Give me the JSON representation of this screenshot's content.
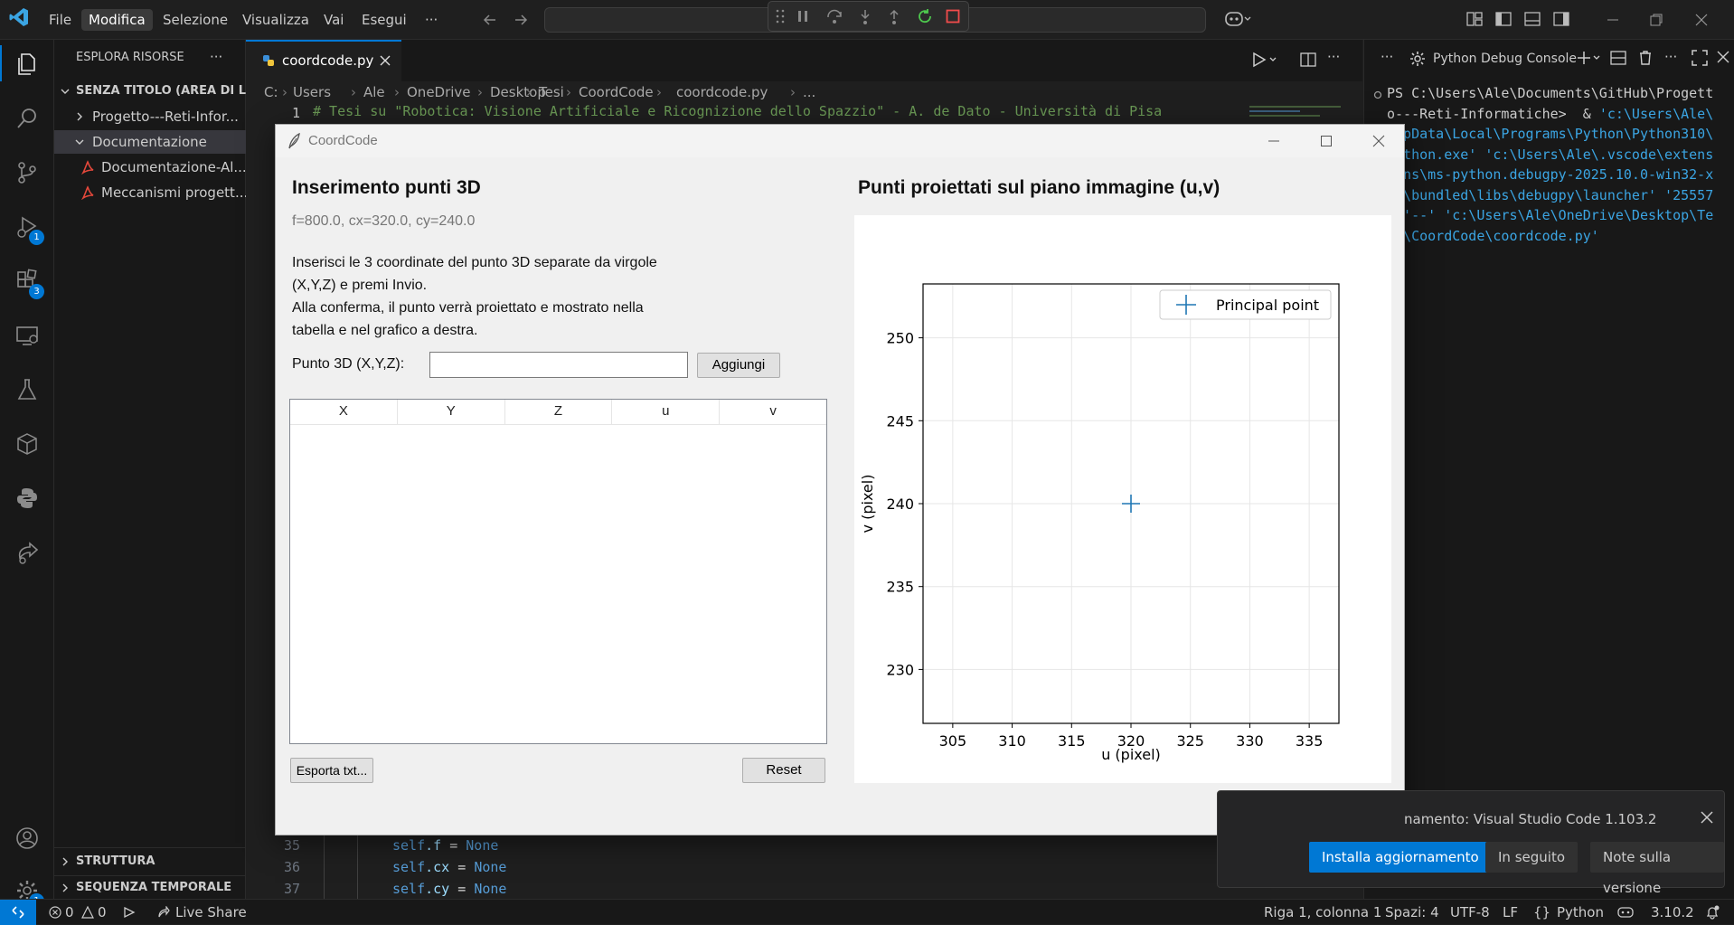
{
  "titlebar": {
    "menus": [
      "File",
      "Modifica",
      "Selezione",
      "Visualizza",
      "Vai",
      "Esegui"
    ],
    "more": "···"
  },
  "activity": {
    "run_badge": "1",
    "ext_badge": "3",
    "settings_badge": "1"
  },
  "sidebar": {
    "title": "ESPLORA RISORSE",
    "more": "···",
    "workspace": "SENZA TITOLO (AREA DI L...",
    "items": [
      {
        "label": "Progetto---Reti-Infor..."
      },
      {
        "label": "Documentazione"
      },
      {
        "label": "Documentazione-Al..."
      },
      {
        "label": "Meccanismi progett..."
      }
    ],
    "outline": "STRUTTURA",
    "timeline": "SEQUENZA TEMPORALE"
  },
  "editor": {
    "tab_label": "coordcode.py",
    "breadcrumb": [
      "C:",
      "Users",
      "Ale",
      "OneDrive",
      "Desktop",
      "Tesi",
      "CoordCode",
      "coordcode.py",
      "..."
    ],
    "line1_no": "1",
    "line1": "# Tesi su \"Robotica: Visione Artificiale e Ricognizione dello Spazzio\" - A. de Dato - Università di Pisa",
    "lines": [
      {
        "no": "35",
        "obj": "self",
        "attr": ".f",
        "eq": " = ",
        "val": "None"
      },
      {
        "no": "36",
        "obj": "self",
        "attr": ".cx",
        "eq": " = ",
        "val": "None"
      },
      {
        "no": "37",
        "obj": "self",
        "attr": ".cy",
        "eq": " = ",
        "val": "None"
      }
    ]
  },
  "panel": {
    "title": "Python Debug Console",
    "more": "···",
    "terminal": [
      [
        {
          "t": "PS C:\\Users\\Ale\\Documents\\GitHub\\Progett",
          "c": "#cccccc"
        }
      ],
      [
        {
          "t": "o---Reti-Informatiche>  & ",
          "c": "#cccccc"
        },
        {
          "t": "'c:\\Users\\Ale\\",
          "c": "#3ba5e3"
        }
      ],
      [
        {
          "t": "AppData\\Local\\Programs\\Python\\Python310\\",
          "c": "#3ba5e3"
        }
      ],
      [
        {
          "t": "python.exe' 'c:\\Users\\Ale\\.vscode\\extens",
          "c": "#3ba5e3"
        }
      ],
      [
        {
          "t": "ions\\ms-python.debugpy-2025.10.0-win32-x",
          "c": "#3ba5e3"
        }
      ],
      [
        {
          "t": "64\\bundled\\libs\\debugpy\\launcher' '25557",
          "c": "#3ba5e3"
        }
      ],
      [
        {
          "t": "' '--' 'c:\\Users\\Ale\\OneDrive\\Desktop\\Te",
          "c": "#3ba5e3"
        }
      ],
      [
        {
          "t": "si\\CoordCode\\coordcode.py'",
          "c": "#3ba5e3"
        }
      ]
    ]
  },
  "notification": {
    "text": "namento: Visual Studio Code 1.103.2",
    "primary": "Installa aggiornamento",
    "later": "In seguito",
    "notes": "Note sulla versione"
  },
  "statusbar": {
    "errors": "0",
    "warnings": "0",
    "liveshare": "Live Share",
    "position": "Riga 1, colonna 1",
    "spaces": "Spazi: 4",
    "encoding": "UTF-8",
    "eol": "LF",
    "language": "Python",
    "braces": "{}",
    "version": "3.10.2"
  },
  "app": {
    "title": "CoordCode",
    "left_heading": "Inserimento punti 3D",
    "params": "f=800.0, cx=320.0, cy=240.0",
    "instructions": [
      "Inserisci le 3 coordinate del punto 3D separate da virgole",
      "(X,Y,Z) e premi Invio.",
      "Alla conferma, il punto verrà proiettato e mostrato nella",
      "tabella e nel grafico a destra."
    ],
    "input_label": "Punto 3D (X,Y,Z):",
    "input_value": "",
    "add_button": "Aggiungi",
    "table_columns": [
      "X",
      "Y",
      "Z",
      "u",
      "v"
    ],
    "export_button": "Esporta txt...",
    "reset_button": "Reset",
    "right_heading": "Punti proiettati sul piano immagine (u,v)"
  },
  "chart_data": {
    "type": "scatter",
    "title": "",
    "xlabel": "u (pixel)",
    "ylabel": "v (pixel)",
    "xlim": [
      302.5,
      337.5
    ],
    "ylim": [
      226.75,
      253.25
    ],
    "xticks": [
      305,
      310,
      315,
      320,
      325,
      330,
      335
    ],
    "yticks": [
      230,
      235,
      240,
      245,
      250
    ],
    "grid": true,
    "legend_position": "top-right",
    "series": [
      {
        "name": "Principal point",
        "marker": "+",
        "color": "#1f77b4",
        "points": [
          {
            "x": 320,
            "y": 240
          }
        ]
      }
    ]
  }
}
